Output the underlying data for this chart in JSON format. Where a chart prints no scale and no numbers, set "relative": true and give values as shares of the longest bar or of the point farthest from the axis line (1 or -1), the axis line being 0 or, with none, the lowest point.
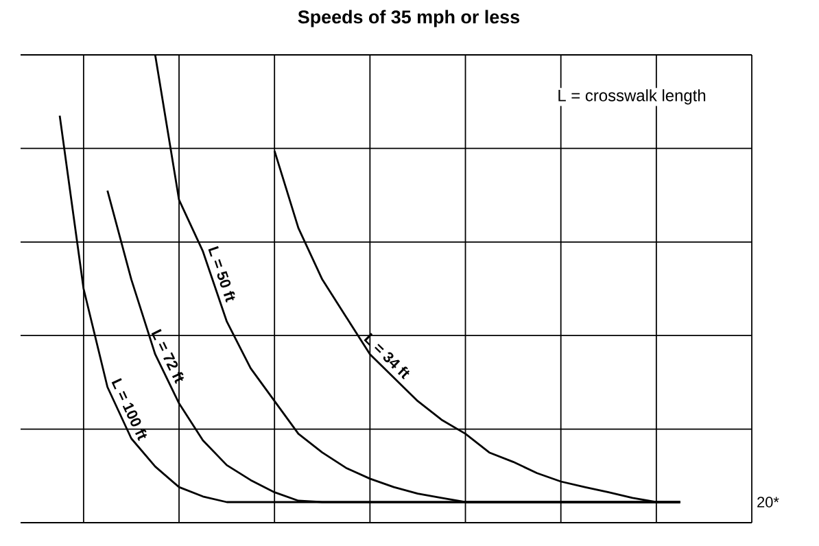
{
  "chart_data": {
    "type": "line",
    "title": "Speeds of 35 mph or less",
    "relative": true,
    "grid": true,
    "legend": false,
    "marker": "none",
    "line_style": "solid",
    "categories": [
      null,
      null,
      null,
      null,
      null,
      null,
      null,
      null,
      null,
      null,
      null,
      null,
      null,
      null,
      null,
      null,
      null,
      null,
      null,
      null,
      null,
      null,
      null,
      null,
      null,
      null,
      null,
      null
    ],
    "annotations": [
      "L = crosswalk length",
      "20*"
    ],
    "series": [
      {
        "name": "L = 100 ft",
        "color": "#000000",
        "values": [
          null,
          0.87,
          0.5,
          0.29,
          0.18,
          0.12,
          0.076,
          0.056,
          0.044,
          0.044,
          0.044,
          0.044,
          0.044,
          0.044,
          0.044,
          0.044,
          0.044,
          0.044,
          0.044,
          0.044,
          0.044,
          0.044,
          0.044,
          0.044,
          0.044,
          0.044,
          0.044,
          0.044
        ]
      },
      {
        "name": "L = 72 ft",
        "color": "#000000",
        "values": [
          null,
          null,
          null,
          0.71,
          0.52,
          0.36,
          0.255,
          0.176,
          0.123,
          0.091,
          0.065,
          0.047,
          0.044,
          0.044,
          0.044,
          0.044,
          0.044,
          0.044,
          0.044,
          0.044,
          0.044,
          0.044,
          0.044,
          0.044,
          0.044,
          0.044,
          0.044,
          0.044
        ]
      },
      {
        "name": "L = 50 ft",
        "color": "#000000",
        "values": [
          null,
          null,
          null,
          null,
          null,
          1,
          0.69,
          0.58,
          0.43,
          0.33,
          0.26,
          0.19,
          0.15,
          0.117,
          0.094,
          0.076,
          0.062,
          0.053,
          0.044,
          0.044,
          0.044,
          0.044,
          0.044,
          0.044,
          0.044,
          0.044,
          0.044,
          0.044
        ]
      },
      {
        "name": "L = 34 ft",
        "color": "#000000",
        "values": [
          null,
          null,
          null,
          null,
          null,
          null,
          null,
          null,
          null,
          null,
          0.795,
          0.63,
          0.52,
          0.44,
          0.36,
          0.31,
          0.26,
          0.22,
          0.19,
          0.15,
          0.13,
          0.106,
          0.088,
          0.076,
          0.065,
          0.053,
          0.044,
          0.044
        ]
      }
    ]
  }
}
